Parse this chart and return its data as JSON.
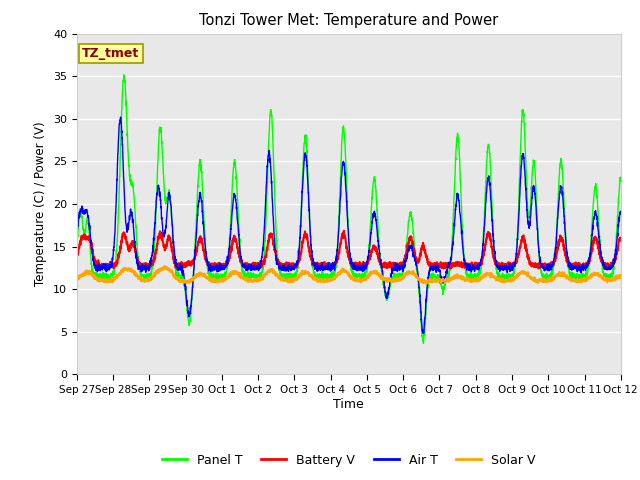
{
  "title": "Tonzi Tower Met: Temperature and Power",
  "xlabel": "Time",
  "ylabel": "Temperature (C) / Power (V)",
  "xlim_start": 0,
  "xlim_end": 15,
  "ylim": [
    0,
    40
  ],
  "yticks": [
    0,
    5,
    10,
    15,
    20,
    25,
    30,
    35,
    40
  ],
  "xtick_labels": [
    "Sep 27",
    "Sep 28",
    "Sep 29",
    "Sep 30",
    "Oct 1",
    "Oct 2",
    "Oct 3",
    "Oct 4",
    "Oct 5",
    "Oct 6",
    "Oct 7",
    "Oct 8",
    "Oct 9",
    "Oct 10",
    "Oct 11",
    "Oct 12"
  ],
  "xtick_positions": [
    0,
    1,
    2,
    3,
    4,
    5,
    6,
    7,
    8,
    9,
    10,
    11,
    12,
    13,
    14,
    15
  ],
  "colors": {
    "panel_t": "#00FF00",
    "battery_v": "#FF0000",
    "air_t": "#0000FF",
    "solar_v": "#FFA500"
  },
  "legend_label": "TZ_tmet",
  "bg_color": "#E8E8E8",
  "annotation_box_color": "#FFFF99",
  "annotation_text_color": "#8B0000",
  "annotation_edge_color": "#999900"
}
